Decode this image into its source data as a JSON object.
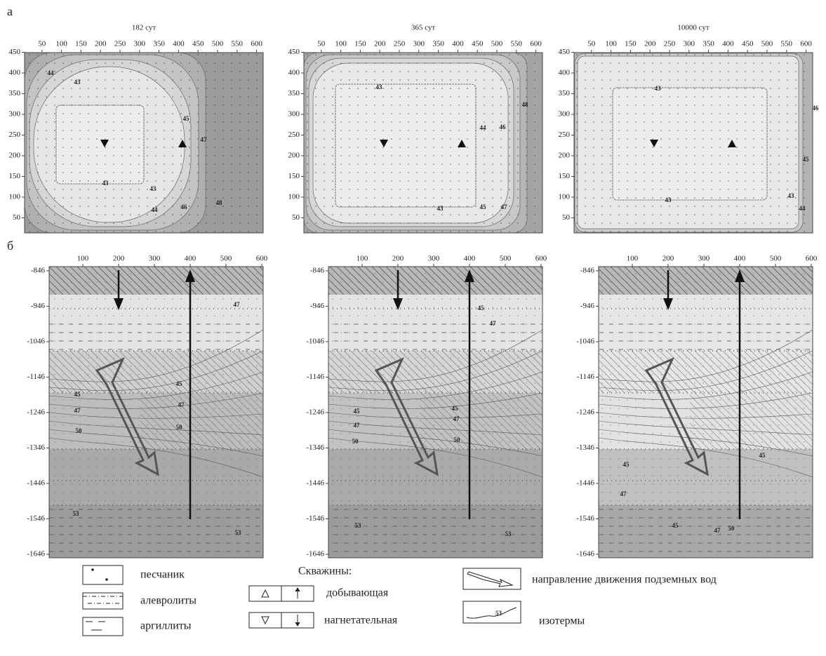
{
  "panel_labels": [
    "а",
    "б"
  ],
  "top_x_ticks": [
    50,
    100,
    150,
    200,
    250,
    300,
    350,
    400,
    450,
    500,
    550,
    600
  ],
  "top_y_ticks": [
    50,
    100,
    150,
    200,
    250,
    300,
    350,
    400,
    450
  ],
  "bottom_x_ticks": [
    100,
    200,
    300,
    400,
    500,
    600
  ],
  "bottom_y_ticks": [
    -846,
    -946,
    -1046,
    -1146,
    -1246,
    -1346,
    -1446,
    -1546,
    -1646
  ],
  "top_panels": [
    {
      "title": "182 сут",
      "contour_labels": [
        44,
        43,
        43,
        43,
        44,
        46,
        45,
        47,
        48
      ]
    },
    {
      "title": "365 сут",
      "contour_labels": [
        43,
        43,
        45,
        47,
        44,
        46,
        48
      ]
    },
    {
      "title": "10000 сут",
      "contour_labels": [
        43,
        43,
        43,
        44,
        45,
        46
      ]
    }
  ],
  "bottom_panels": [
    {
      "contour_labels": [
        47,
        45,
        45,
        47,
        47,
        50,
        50,
        53,
        53
      ]
    },
    {
      "contour_labels": [
        45,
        47,
        45,
        45,
        47,
        47,
        50,
        50,
        53,
        53
      ]
    },
    {
      "contour_labels": [
        45,
        47,
        45,
        45,
        47,
        50
      ]
    }
  ],
  "legend": {
    "rocks": [
      "песчаник",
      "алевролиты",
      "аргиллиты"
    ],
    "wells_title": "Скважины:",
    "wells": [
      "добывающая",
      "нагнетательная"
    ],
    "flow": "направление движения подземных вод",
    "isotherms": "изотермы",
    "isotherm_sample": 53
  }
}
